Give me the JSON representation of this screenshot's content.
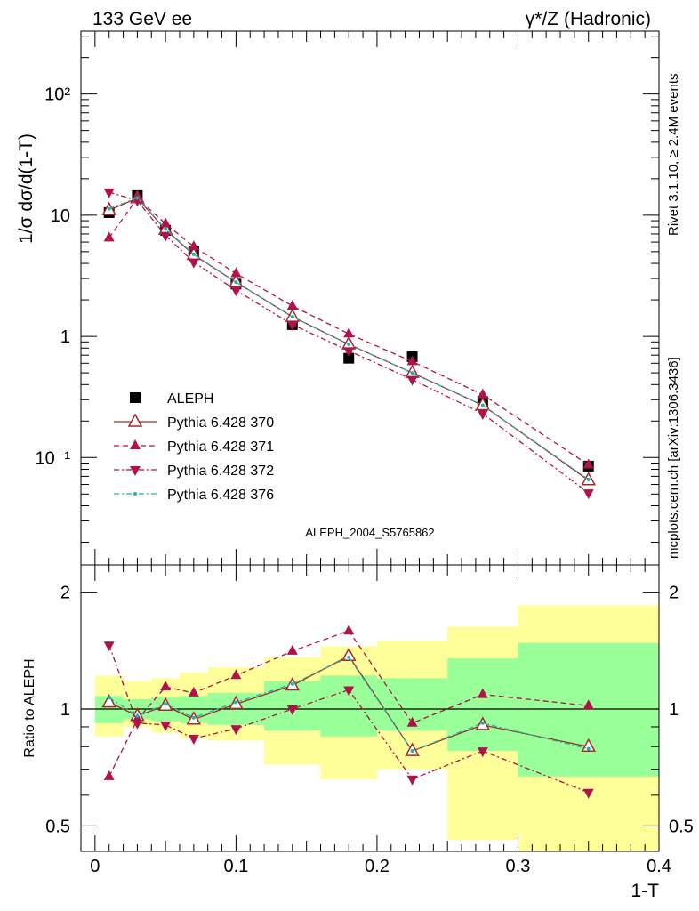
{
  "header": {
    "left": "133 GeV ee",
    "right": "γ*/Z (Hadronic)"
  },
  "side": {
    "rivet": "Rivet 3.1.10, ≥ 2.4M events",
    "mcplots": "mcplots.cern.ch [arXiv:1306.3436]"
  },
  "analysis_label": "ALEPH_2004_S5765862",
  "colors": {
    "data": "#000000",
    "p370": "#a52a2a",
    "p371": "#b0124c",
    "p372": "#b0124c",
    "p376": "#20b2aa",
    "band_inner": "#99ff99",
    "band_outer": "#ffff99"
  },
  "chart_data": [
    {
      "type": "scatter",
      "panel": "main",
      "ylabel": "1/σ  dσ/d(1-T)",
      "yscale": "log",
      "ylim": [
        0.013,
        330
      ],
      "xlim": [
        -0.01,
        0.4
      ],
      "y_tick_labels": [
        "10⁻¹",
        "1",
        "10",
        "10²"
      ],
      "legend_placement": "lower-left",
      "x": [
        0.01,
        0.03,
        0.05,
        0.07,
        0.1,
        0.14,
        0.18,
        0.225,
        0.275,
        0.35
      ],
      "series": [
        {
          "name": "ALEPH",
          "marker": "square",
          "values": [
            10.5,
            14.5,
            7.5,
            5.0,
            2.7,
            1.25,
            0.66,
            0.68,
            0.29,
            0.085
          ]
        },
        {
          "name": "Pythia 6.428 370",
          "marker": "open-triangle",
          "line": "solid",
          "values": [
            11.0,
            13.8,
            7.6,
            4.7,
            2.8,
            1.45,
            0.86,
            0.5,
            0.27,
            0.065
          ]
        },
        {
          "name": "Pythia 6.428 371",
          "marker": "triangle",
          "line": "dashed",
          "values": [
            6.5,
            13.8,
            8.5,
            5.5,
            3.3,
            1.78,
            1.05,
            0.62,
            0.33,
            0.087
          ]
        },
        {
          "name": "Pythia 6.428 372",
          "marker": "triangle-down",
          "line": "dashdot",
          "values": [
            15.5,
            13.2,
            6.8,
            4.1,
            2.4,
            1.25,
            0.76,
            0.44,
            0.23,
            0.051
          ]
        },
        {
          "name": "Pythia 6.428 376",
          "marker": "dot",
          "line": "dashdot",
          "values": [
            11.3,
            13.9,
            7.7,
            4.75,
            2.8,
            1.45,
            0.86,
            0.5,
            0.27,
            0.066
          ]
        }
      ]
    },
    {
      "type": "line",
      "panel": "ratio",
      "ylabel": "Ratio to ALEPH",
      "xlabel": "1-T",
      "yscale": "log",
      "ylim": [
        0.43,
        2.35
      ],
      "xlim": [
        -0.01,
        0.4
      ],
      "y_tick_labels": [
        "0.5",
        "1",
        "2"
      ],
      "x_tick_labels": [
        "0",
        "0.1",
        "0.2",
        "0.3",
        "0.4"
      ],
      "reference_line": 1,
      "bands": {
        "edges": [
          0,
          0.02,
          0.04,
          0.06,
          0.08,
          0.12,
          0.16,
          0.2,
          0.25,
          0.3,
          0.4
        ],
        "inner_lo": [
          0.92,
          0.94,
          0.93,
          0.92,
          0.91,
          0.88,
          0.85,
          0.88,
          0.78,
          0.67
        ],
        "inner_hi": [
          1.08,
          1.06,
          1.07,
          1.08,
          1.1,
          1.18,
          1.22,
          1.2,
          1.35,
          1.48
        ],
        "outer_lo": [
          0.85,
          0.9,
          0.87,
          0.84,
          0.83,
          0.72,
          0.66,
          0.7,
          0.46,
          0.35
        ],
        "outer_hi": [
          1.22,
          1.18,
          1.2,
          1.24,
          1.28,
          1.36,
          1.45,
          1.5,
          1.63,
          1.85
        ]
      },
      "x": [
        0.01,
        0.03,
        0.05,
        0.07,
        0.1,
        0.14,
        0.18,
        0.225,
        0.275,
        0.35
      ],
      "series": [
        {
          "name": "Pythia 6.428 370",
          "marker": "open-triangle",
          "line": "solid",
          "values": [
            1.04,
            0.96,
            1.02,
            0.94,
            1.03,
            1.15,
            1.37,
            0.78,
            0.91,
            0.8
          ]
        },
        {
          "name": "Pythia 6.428 371",
          "marker": "triangle",
          "line": "dashed",
          "values": [
            0.67,
            0.94,
            1.14,
            1.1,
            1.22,
            1.41,
            1.59,
            0.92,
            1.09,
            1.02
          ]
        },
        {
          "name": "Pythia 6.428 372",
          "marker": "triangle-down",
          "line": "dashdot",
          "values": [
            1.46,
            0.92,
            0.91,
            0.84,
            0.89,
            1.0,
            1.12,
            0.66,
            0.78,
            0.61
          ]
        },
        {
          "name": "Pythia 6.428 376",
          "marker": "dot",
          "line": "dashdot",
          "values": [
            1.07,
            0.96,
            1.03,
            0.95,
            1.04,
            1.16,
            1.36,
            0.78,
            0.92,
            0.79
          ]
        }
      ]
    }
  ]
}
